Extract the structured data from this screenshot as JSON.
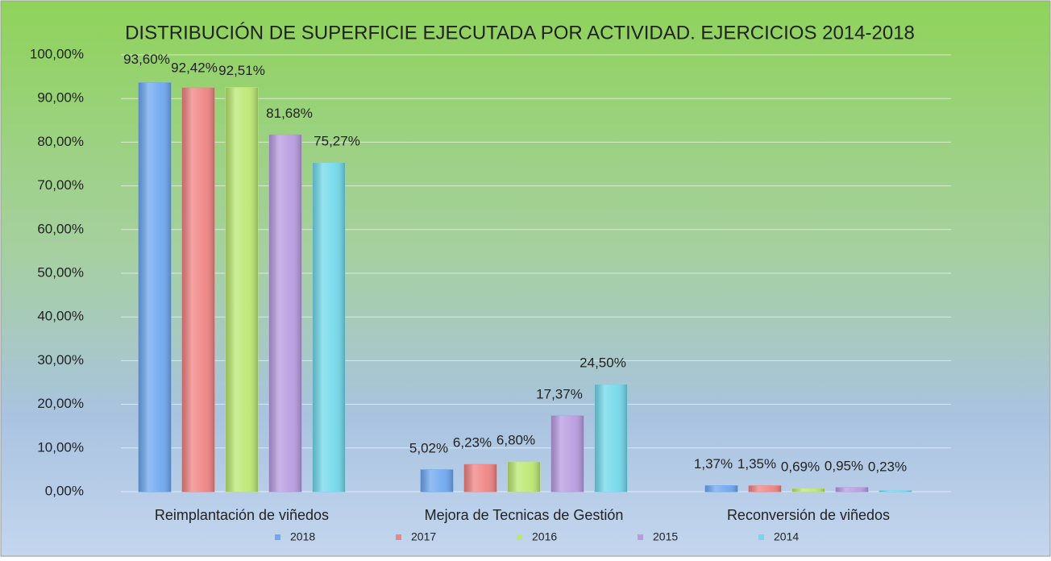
{
  "chart_data": {
    "type": "bar",
    "title": "DISTRIBUCIÓN DE SUPERFICIE EJECUTADA POR ACTIVIDAD. EJERCICIOS 2014-2018",
    "categories": [
      "Reimplantación de viñedos",
      "Mejora de Tecnicas de Gestión",
      "Reconversión de viñedos"
    ],
    "series": [
      {
        "name": "2018",
        "color": "#6fa8f0",
        "values": [
          93.6,
          5.02,
          1.37
        ],
        "value_labels": [
          "93,60%",
          "5,02%",
          "1,37%"
        ]
      },
      {
        "name": "2017",
        "color": "#f08484",
        "values": [
          92.42,
          6.23,
          1.35
        ],
        "value_labels": [
          "92,42%",
          "6,23%",
          "1,35%"
        ]
      },
      {
        "name": "2016",
        "color": "#bbe872",
        "values": [
          92.51,
          6.8,
          0.69
        ],
        "value_labels": [
          "92,51%",
          "6,80%",
          "0,69%"
        ]
      },
      {
        "name": "2015",
        "color": "#b99ce0",
        "values": [
          81.68,
          17.37,
          0.95
        ],
        "value_labels": [
          "81,68%",
          "17,37%",
          "0,95%"
        ]
      },
      {
        "name": "2014",
        "color": "#72d8ea",
        "values": [
          75.27,
          24.5,
          0.23
        ],
        "value_labels": [
          "75,27%",
          "24,50%",
          "0,23%"
        ]
      }
    ],
    "ylim": [
      0,
      100
    ],
    "yticks": [
      {
        "value": 0,
        "label": "0,00%"
      },
      {
        "value": 10,
        "label": "10,00%"
      },
      {
        "value": 20,
        "label": "20,00%"
      },
      {
        "value": 30,
        "label": "30,00%"
      },
      {
        "value": 40,
        "label": "40,00%"
      },
      {
        "value": 50,
        "label": "50,00%"
      },
      {
        "value": 60,
        "label": "60,00%"
      },
      {
        "value": 70,
        "label": "70,00%"
      },
      {
        "value": 80,
        "label": "80,00%"
      },
      {
        "value": 90,
        "label": "90,00%"
      },
      {
        "value": 100,
        "label": "100,00%"
      }
    ],
    "grid": true,
    "legend": "bottom"
  }
}
